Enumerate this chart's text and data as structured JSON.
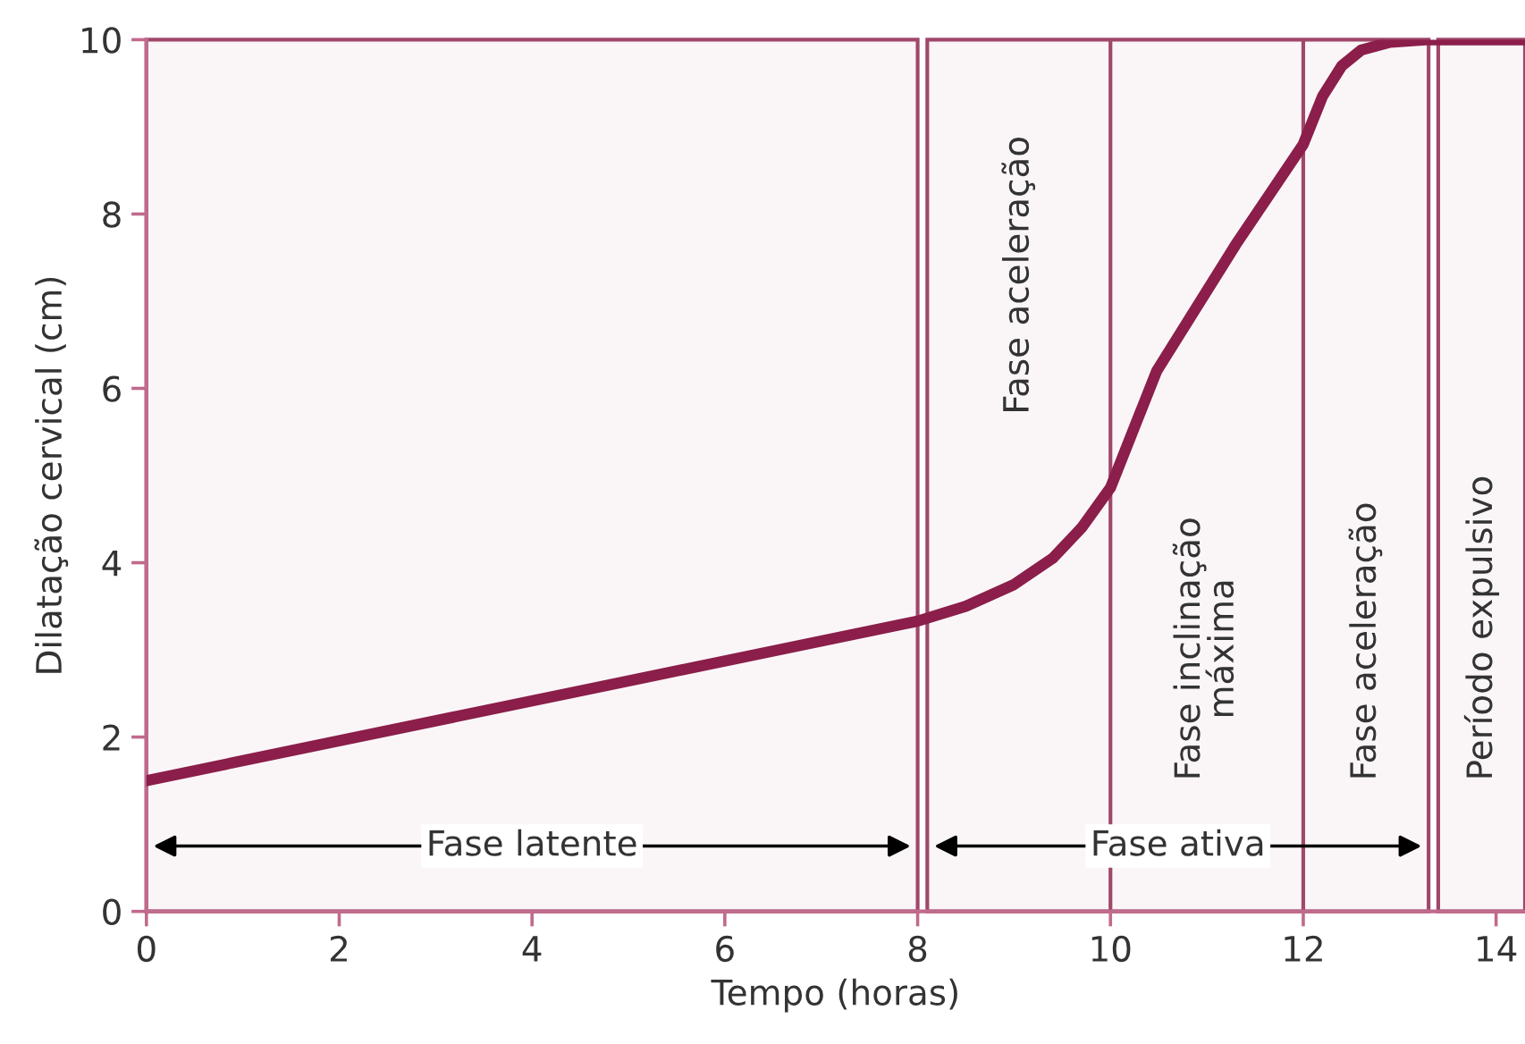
{
  "chart_data": {
    "type": "line",
    "xlabel": "Tempo (horas)",
    "ylabel": "Dilatação cervical (cm)",
    "series": [
      {
        "color": "#8b1e4a",
        "x": [
          0,
          8,
          8.5,
          9,
          9.4,
          9.7,
          10,
          10.48,
          11.3,
          12,
          12.2,
          12.4,
          12.6,
          12.9,
          13.3,
          14.3
        ],
        "values": [
          1.5,
          3.33,
          3.5,
          3.75,
          4.05,
          4.4,
          4.86,
          6.2,
          7.65,
          8.8,
          9.35,
          9.7,
          9.88,
          9.97,
          10,
          10
        ]
      }
    ],
    "xlim": [
      0,
      14.3
    ],
    "ylim": [
      0,
      10
    ],
    "xticks": [
      0,
      2,
      4,
      6,
      8,
      10,
      12,
      14
    ],
    "yticks": [
      0,
      2,
      4,
      6,
      8,
      10
    ],
    "grid": false,
    "marker": "none",
    "line_style": "solid",
    "bands": [
      {
        "axis": "x",
        "from": 0,
        "to": 8,
        "label": "Fase latente",
        "color": "#a0476b"
      },
      {
        "axis": "x",
        "from": 8.1,
        "to": 13.3,
        "label": "Fase ativa",
        "color": "#a0476b"
      },
      {
        "axis": "x",
        "from": 13.4,
        "to": 14.3,
        "color": "#a0476b"
      }
    ],
    "ref_lines": [
      {
        "axis": "x",
        "value": 10,
        "color": "#a0476b"
      },
      {
        "axis": "x",
        "value": 12,
        "color": "#a0476b"
      }
    ],
    "annotations": [
      "Fase aceleração",
      "Fase inclinação\nmáxima",
      "Fase aceleração",
      "Período expulsivo"
    ]
  }
}
